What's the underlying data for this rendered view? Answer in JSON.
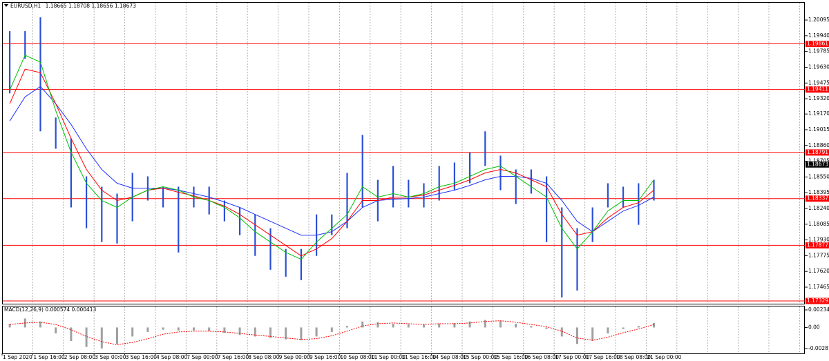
{
  "chart_data": [
    {
      "type": "range",
      "symbol": "EURUSD,H1",
      "quote": [
        1.18665,
        1.18708,
        1.18656,
        1.18673
      ],
      "categories": [
        "1 Sep 2020",
        null,
        "1 Sep 16:00",
        null,
        "2 Sep 08:00",
        null,
        "3 Sep 00:00",
        null,
        "3 Sep 16:00",
        null,
        "4 Sep 08:00",
        null,
        "7 Sep 00:00",
        null,
        "7 Sep 16:00",
        null,
        "8 Sep 08:00",
        null,
        "9 Sep 00:00",
        null,
        "9 Sep 16:00",
        null,
        "10 Sep 08:00",
        null,
        "11 Sep 00:00",
        null,
        "11 Sep 16:00",
        null,
        "14 Sep 08:00",
        null,
        "15 Sep 00:00",
        null,
        "15 Sep 16:00",
        null,
        "16 Sep 08:00",
        null,
        "17 Sep 00:00",
        null,
        "17 Sep 16:00",
        null,
        "18 Sep 08:00",
        null,
        "21 Sep 00:00"
      ],
      "high": [
        1.19986,
        1.19986,
        1.20122,
        1.19135,
        1.1893,
        1.18556,
        1.18454,
        1.18386,
        1.1859,
        1.18556,
        1.18454,
        1.18454,
        1.18454,
        1.18454,
        1.18318,
        1.1825,
        1.18181,
        1.18045,
        1.17841,
        1.17841,
        1.18181,
        1.18181,
        1.1859,
        1.18964,
        1.18522,
        1.18658,
        1.18522,
        1.18488,
        1.18658,
        1.18692,
        1.18794,
        1.18999,
        1.1876,
        1.18624,
        1.18624,
        1.18556,
        1.1825,
        1.18045,
        1.1825,
        1.18488,
        1.18454,
        1.18488,
        1.18522
      ],
      "low": [
        1.19373,
        1.19714,
        1.18999,
        1.18828,
        1.1825,
        1.18045,
        1.17909,
        1.17895,
        1.18113,
        1.18318,
        1.1825,
        1.17807,
        1.1825,
        1.18181,
        1.18113,
        1.17977,
        1.17773,
        1.17636,
        1.17568,
        1.17534,
        1.17773,
        1.17977,
        1.18045,
        1.1825,
        1.18113,
        1.1825,
        1.1825,
        1.1825,
        1.18318,
        1.1842,
        1.18488,
        1.18658,
        1.1842,
        1.18284,
        1.18386,
        1.17909,
        1.17364,
        1.17432,
        1.17909,
        1.1825,
        1.1825,
        1.18079,
        1.18318
      ],
      "color": "#2a4fd6",
      "moving_averages": [
        {
          "color": "#1e32ff",
          "values": [
            1.19101,
            1.19339,
            1.19441,
            1.19271,
            1.19067,
            1.18828,
            1.18624,
            1.18488,
            1.1844,
            1.1844,
            1.1844,
            1.1842,
            1.18386,
            1.18352,
            1.18304,
            1.1825,
            1.18181,
            1.18113,
            1.18045,
            1.17977,
            1.17977,
            1.18011,
            1.18113,
            1.1825,
            1.18318,
            1.18331,
            1.18338,
            1.18352,
            1.18386,
            1.1842,
            1.18467,
            1.18522,
            1.18556,
            1.18556,
            1.18536,
            1.18488,
            1.18318,
            1.18113,
            1.18011,
            1.18113,
            1.18215,
            1.1827,
            1.18352
          ]
        },
        {
          "color": "#ff0000",
          "values": [
            1.19271,
            1.19612,
            1.19577,
            1.19271,
            1.1893,
            1.18624,
            1.1842,
            1.18318,
            1.18352,
            1.1842,
            1.1844,
            1.18399,
            1.18365,
            1.18318,
            1.18263,
            1.18181,
            1.18079,
            1.17977,
            1.17875,
            1.17773,
            1.17841,
            1.17943,
            1.18113,
            1.18318,
            1.18318,
            1.18352,
            1.18352,
            1.18372,
            1.1842,
            1.18467,
            1.18522,
            1.1859,
            1.18624,
            1.1859,
            1.18522,
            1.18454,
            1.18181,
            1.17977,
            1.18011,
            1.18147,
            1.1825,
            1.18297,
            1.1842
          ]
        },
        {
          "color": "#00c000",
          "values": [
            1.19407,
            1.19748,
            1.1968,
            1.19203,
            1.18794,
            1.18488,
            1.18318,
            1.1825,
            1.18352,
            1.1842,
            1.18454,
            1.1842,
            1.18352,
            1.18318,
            1.1825,
            1.18147,
            1.18011,
            1.17909,
            1.17807,
            1.17739,
            1.17909,
            1.18045,
            1.18181,
            1.18454,
            1.18352,
            1.18386,
            1.18352,
            1.18386,
            1.18454,
            1.18488,
            1.18556,
            1.18624,
            1.18658,
            1.18556,
            1.18454,
            1.18352,
            1.18045,
            1.17841,
            1.18011,
            1.18215,
            1.18318,
            1.18318,
            1.18522
          ]
        }
      ],
      "levels": [
        1.19861,
        1.19411,
        1.18791,
        1.18337,
        1.17877,
        1.17329
      ],
      "level_color": "#ff0000",
      "ylim": [
        1.17302,
        1.20272
      ],
      "yticks": [
        1.20095,
        {
          "value": 1.1994,
          "label": "1.19940"
        },
        1.19785,
        {
          "value": 1.1963,
          "label": "1.19630"
        },
        1.19475,
        {
          "value": 1.1932,
          "label": "1.19320"
        },
        {
          "value": 1.1917,
          "label": "1.19170"
        },
        1.19015,
        {
          "value": 1.1886,
          "label": "1.18860"
        },
        1.18705,
        {
          "value": 1.1855,
          "label": "1.18550"
        },
        1.18395,
        {
          "value": 1.1824,
          "label": "1.18240"
        },
        1.18085,
        {
          "value": 1.1793,
          "label": "1.17930"
        },
        1.17775,
        {
          "value": 1.1762,
          "label": "1.17620"
        },
        1.17465
      ],
      "grid": true
    },
    {
      "type": "macd",
      "title": "MACD(12,26,9)",
      "readout": [
        0.000574,
        0.000413
      ],
      "histogram": [
        0.0005,
        0.0012,
        0.0008,
        -0.0008,
        -0.0018,
        -0.0026,
        -0.0028,
        -0.0022,
        -0.0012,
        -0.0006,
        -0.0003,
        -0.0004,
        -0.0004,
        -0.0005,
        -0.0007,
        -0.001,
        -0.0012,
        -0.0014,
        -0.0016,
        -0.0017,
        -0.0012,
        -0.0006,
        0.0002,
        0.0008,
        0.0007,
        0.0005,
        0.0004,
        0.0004,
        0.0005,
        0.0006,
        0.0008,
        0.001,
        0.0009,
        0.0005,
        0.0002,
        -0.0002,
        -0.0012,
        -0.0022,
        -0.0018,
        -0.0008,
        -0.0002,
        0.0002,
        0.0006
      ],
      "histogram_color": "#a0a0a0",
      "signal": [
        0.0004,
        0.0006,
        0.0007,
        0.0004,
        -0.0003,
        -0.0012,
        -0.0019,
        -0.0023,
        -0.002,
        -0.0015,
        -0.0009,
        -0.0006,
        -0.0005,
        -0.0005,
        -0.0006,
        -0.0008,
        -0.001,
        -0.0012,
        -0.0014,
        -0.0016,
        -0.0015,
        -0.0011,
        -0.0005,
        0.0002,
        0.0005,
        0.0006,
        0.0005,
        0.0004,
        0.0005,
        0.0005,
        0.0006,
        0.0008,
        0.0009,
        0.0007,
        0.0004,
        0.0001,
        -0.0005,
        -0.0014,
        -0.0017,
        -0.0013,
        -0.0007,
        -0.0002,
        0.0004
      ],
      "signal_color": "#ff0000",
      "ylim": [
        -0.003463,
        0.002896
      ],
      "yticks": [
        0.002343,
        {
          "value": 0,
          "label": "0.00"
        },
        -0.002818
      ]
    }
  ]
}
